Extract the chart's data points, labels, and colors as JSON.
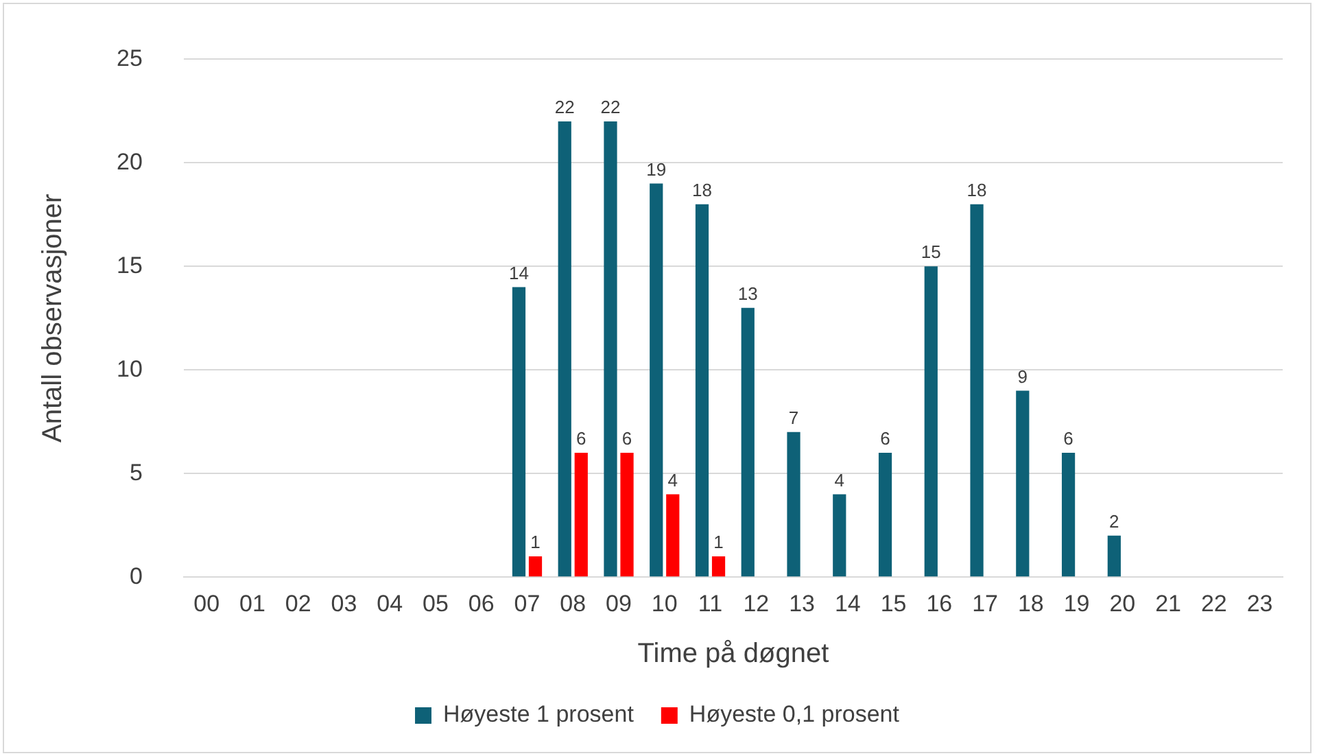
{
  "chart_data": {
    "type": "bar",
    "xlabel": "Time på døgnet",
    "ylabel": "Antall observasjoner",
    "categories": [
      "00",
      "01",
      "02",
      "03",
      "04",
      "05",
      "06",
      "07",
      "08",
      "09",
      "10",
      "11",
      "12",
      "13",
      "14",
      "15",
      "16",
      "17",
      "18",
      "19",
      "20",
      "21",
      "22",
      "23"
    ],
    "series": [
      {
        "name": "Høyeste 1 prosent",
        "color": "#0e6177",
        "values": [
          null,
          null,
          null,
          null,
          null,
          null,
          null,
          14,
          22,
          22,
          19,
          18,
          13,
          7,
          4,
          6,
          15,
          18,
          9,
          6,
          2,
          null,
          null,
          null
        ]
      },
      {
        "name": "Høyeste 0,1 prosent",
        "color": "#ff0000",
        "values": [
          null,
          null,
          null,
          null,
          null,
          null,
          null,
          1,
          6,
          6,
          4,
          1,
          null,
          null,
          null,
          null,
          null,
          null,
          null,
          null,
          null,
          null,
          null,
          null
        ]
      }
    ],
    "ylim": [
      0,
      25
    ],
    "yticks": [
      0,
      5,
      10,
      15,
      20,
      25
    ],
    "grid": "y",
    "legend": "bottom",
    "data_labels": true
  }
}
